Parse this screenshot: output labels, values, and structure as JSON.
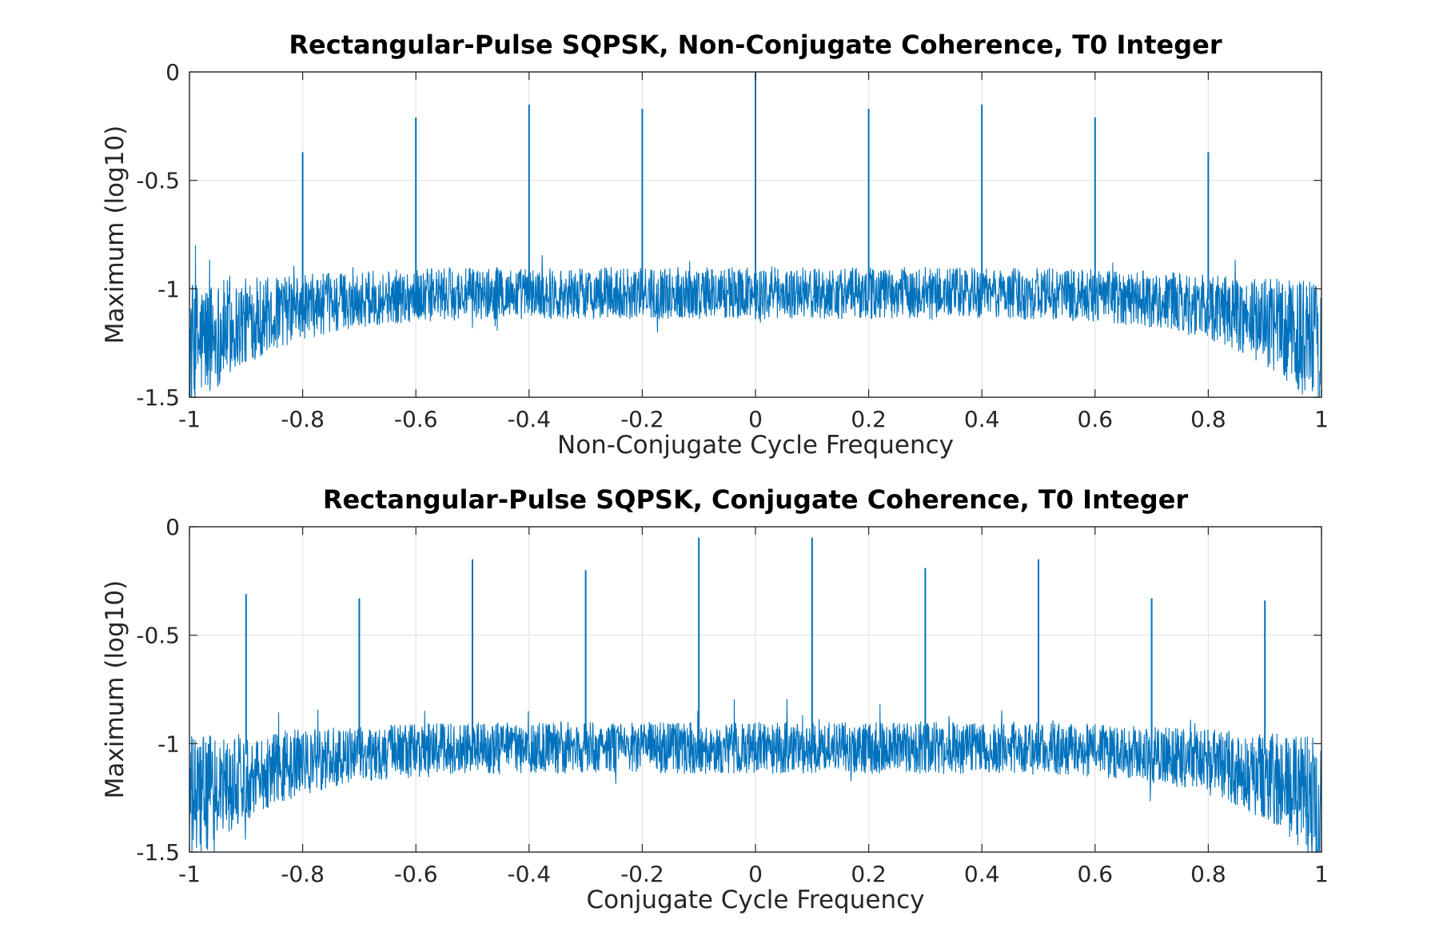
{
  "chart_data": [
    {
      "type": "line",
      "title": "Rectangular-Pulse SQPSK, Non-Conjugate Coherence, T0 Integer",
      "xlabel": "Non-Conjugate Cycle Frequency",
      "ylabel": "Maximum (log10)",
      "xlim": [
        -1,
        1
      ],
      "ylim": [
        -1.5,
        0
      ],
      "grid": true,
      "color": "#0072BD",
      "x_ticks": [
        "-1",
        "-0.8",
        "-0.6",
        "-0.4",
        "-0.2",
        "0",
        "0.2",
        "0.4",
        "0.6",
        "0.8",
        "1"
      ],
      "y_ticks": [
        "0",
        "-0.5",
        "-1",
        "-1.5"
      ],
      "noise_floor": {
        "center": -1.0,
        "edge_value": -1.25,
        "spread": 0.12
      },
      "peaks": [
        {
          "x": -0.8,
          "y": -0.37
        },
        {
          "x": -0.6,
          "y": -0.21
        },
        {
          "x": -0.4,
          "y": -0.15
        },
        {
          "x": -0.2,
          "y": -0.17
        },
        {
          "x": 0.0,
          "y": 0.0
        },
        {
          "x": 0.2,
          "y": -0.17
        },
        {
          "x": 0.4,
          "y": -0.15
        },
        {
          "x": 0.6,
          "y": -0.21
        },
        {
          "x": 0.8,
          "y": -0.37
        }
      ]
    },
    {
      "type": "line",
      "title": "Rectangular-Pulse SQPSK, Conjugate Coherence, T0 Integer",
      "xlabel": "Conjugate Cycle Frequency",
      "ylabel": "Maximum (log10)",
      "xlim": [
        -1,
        1
      ],
      "ylim": [
        -1.5,
        0
      ],
      "grid": true,
      "color": "#0072BD",
      "x_ticks": [
        "-1",
        "-0.8",
        "-0.6",
        "-0.4",
        "-0.2",
        "0",
        "0.2",
        "0.4",
        "0.6",
        "0.8",
        "1"
      ],
      "y_ticks": [
        "0",
        "-0.5",
        "-1",
        "-1.5"
      ],
      "noise_floor": {
        "center": -1.0,
        "edge_value": -1.25,
        "spread": 0.12
      },
      "peaks": [
        {
          "x": -0.9,
          "y": -0.31
        },
        {
          "x": -0.7,
          "y": -0.33
        },
        {
          "x": -0.5,
          "y": -0.15
        },
        {
          "x": -0.3,
          "y": -0.2
        },
        {
          "x": -0.1,
          "y": -0.05
        },
        {
          "x": 0.1,
          "y": -0.05
        },
        {
          "x": 0.3,
          "y": -0.19
        },
        {
          "x": 0.5,
          "y": -0.15
        },
        {
          "x": 0.7,
          "y": -0.33
        },
        {
          "x": 0.9,
          "y": -0.34
        }
      ]
    }
  ]
}
